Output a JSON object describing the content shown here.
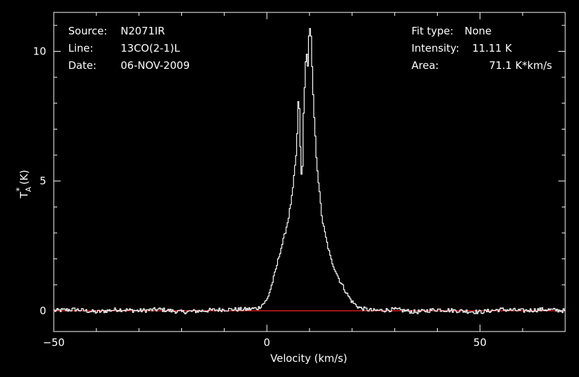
{
  "chart_data": {
    "type": "line",
    "xlabel": "Velocity (km/s)",
    "ylabel": {
      "main": "T",
      "sup": "*",
      "sub": "A",
      "unit": "(K)"
    },
    "xlim": [
      -50,
      70
    ],
    "ylim": [
      -0.8,
      11.5
    ],
    "x_ticks": [
      -50,
      0,
      50
    ],
    "y_ticks": [
      0,
      5,
      10
    ],
    "baseline": {
      "value": 0,
      "color": "#ff2020"
    },
    "line_color": "#ffffff",
    "info_left": [
      {
        "key": "Source:",
        "value": "N2071IR"
      },
      {
        "key": "Line:",
        "value": "13CO(2-1)L"
      },
      {
        "key": "Date:",
        "value": "06-NOV-2009"
      }
    ],
    "info_right": [
      {
        "key": "Fit type:",
        "value": "None"
      },
      {
        "key": "Intensity:",
        "value": "11.11 K"
      },
      {
        "key": "Area:",
        "value": "71.1 K*km/s"
      }
    ],
    "series": [
      {
        "x": [
          -50,
          -45,
          -40,
          -35,
          -30,
          -25,
          -20,
          -15,
          -10,
          -5,
          -2,
          0,
          1,
          2,
          3,
          4,
          5,
          6,
          7,
          7.5,
          8,
          8.3,
          8.6,
          9,
          9.3,
          9.6,
          10,
          10.4,
          10.8,
          11.2,
          11.6,
          12,
          12.5,
          13,
          14,
          15,
          16,
          17,
          18,
          19,
          20,
          21,
          22,
          25,
          30,
          35,
          40,
          45,
          50,
          55,
          60,
          65,
          70
        ],
        "y": [
          0,
          0.05,
          -0.05,
          0.05,
          0,
          0.05,
          -0.05,
          0,
          0.05,
          0.05,
          0.1,
          0.4,
          0.9,
          1.5,
          2.2,
          2.8,
          3.5,
          4.5,
          6.2,
          8.6,
          5.5,
          4.9,
          7.5,
          9.2,
          10,
          9.4,
          11.1,
          10.5,
          8.5,
          7.2,
          6.0,
          5.2,
          4.3,
          3.5,
          2.7,
          2.0,
          1.6,
          1.2,
          0.9,
          0.6,
          0.35,
          0.2,
          0.1,
          0,
          0.05,
          -0.05,
          0.05,
          0,
          -0.05,
          0.05,
          0,
          0.05,
          0
        ]
      }
    ]
  }
}
